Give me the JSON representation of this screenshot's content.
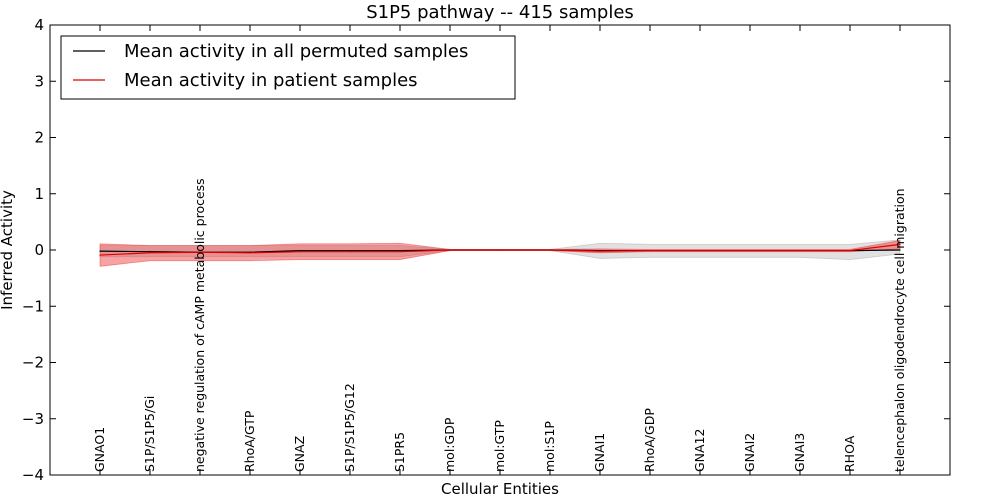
{
  "chart_data": {
    "type": "line",
    "title": "S1P5 pathway -- 415 samples",
    "xlabel": "Cellular Entities",
    "ylabel": "Inferred Activity",
    "ylim": [
      -4,
      4
    ],
    "yticks": [
      4,
      3,
      2,
      1,
      0,
      -1,
      -2,
      -3,
      -4
    ],
    "ytick_labels": [
      "4",
      "3",
      "2",
      "1",
      "0",
      "−1",
      "−2",
      "−3",
      "−4"
    ],
    "grid": false,
    "legend_position": "top-left",
    "categories": [
      "GNAO1",
      "S1P/S1P5/Gi",
      "negative regulation of cAMP metabolic process",
      "RhoA/GTP",
      "GNAZ",
      "S1P/S1P5/G12",
      "S1PR5",
      "mol:GDP",
      "mol:GTP",
      "mol:S1P",
      "GNAI1",
      "RhoA/GDP",
      "GNA12",
      "GNAI2",
      "GNAI3",
      "RHOA",
      "telencephalon oligodendrocyte cell migration"
    ],
    "series": [
      {
        "name": "Mean activity in all permuted samples",
        "color": "#000000",
        "values": [
          -0.02,
          -0.03,
          -0.04,
          -0.04,
          -0.01,
          -0.01,
          -0.01,
          0.0,
          0.0,
          0.0,
          -0.01,
          -0.01,
          -0.01,
          -0.01,
          -0.01,
          -0.01,
          0.0
        ],
        "lower": [
          -0.12,
          -0.12,
          -0.12,
          -0.12,
          -0.12,
          -0.12,
          -0.12,
          -0.01,
          -0.01,
          -0.01,
          -0.15,
          -0.13,
          -0.13,
          -0.13,
          -0.13,
          -0.17,
          -0.07
        ],
        "upper": [
          0.08,
          0.08,
          0.08,
          0.08,
          0.08,
          0.08,
          0.08,
          0.01,
          0.01,
          0.01,
          0.12,
          0.1,
          0.1,
          0.1,
          0.1,
          0.1,
          0.18
        ],
        "band_color": "#aaaaaa"
      },
      {
        "name": "Mean activity in patient samples",
        "color": "#dd0000",
        "values": [
          -0.09,
          -0.05,
          -0.04,
          -0.05,
          -0.03,
          -0.03,
          -0.03,
          0.0,
          0.0,
          0.0,
          -0.02,
          -0.01,
          -0.01,
          -0.01,
          -0.01,
          -0.01,
          0.1
        ],
        "lower": [
          -0.29,
          -0.19,
          -0.19,
          -0.19,
          -0.17,
          -0.17,
          -0.17,
          -0.01,
          -0.01,
          -0.01,
          -0.05,
          -0.03,
          -0.03,
          -0.03,
          -0.03,
          -0.03,
          0.02
        ],
        "upper": [
          0.11,
          0.08,
          0.08,
          0.08,
          0.11,
          0.11,
          0.12,
          0.01,
          0.01,
          0.01,
          0.02,
          0.01,
          0.01,
          0.01,
          0.01,
          0.01,
          0.17
        ],
        "band_color": "#ee3333"
      }
    ]
  }
}
